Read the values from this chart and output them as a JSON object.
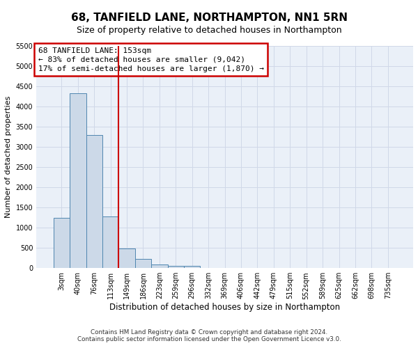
{
  "title": "68, TANFIELD LANE, NORTHAMPTON, NN1 5RN",
  "subtitle": "Size of property relative to detached houses in Northampton",
  "xlabel": "Distribution of detached houses by size in Northampton",
  "ylabel": "Number of detached properties",
  "annotation_line1": "68 TANFIELD LANE: 153sqm",
  "annotation_line2": "← 83% of detached houses are smaller (9,042)",
  "annotation_line3": "17% of semi-detached houses are larger (1,870) →",
  "footer_line1": "Contains HM Land Registry data © Crown copyright and database right 2024.",
  "footer_line2": "Contains public sector information licensed under the Open Government Licence v3.0.",
  "categories": [
    "3sqm",
    "40sqm",
    "76sqm",
    "113sqm",
    "149sqm",
    "186sqm",
    "223sqm",
    "259sqm",
    "296sqm",
    "332sqm",
    "369sqm",
    "406sqm",
    "442sqm",
    "479sqm",
    "515sqm",
    "552sqm",
    "589sqm",
    "625sqm",
    "662sqm",
    "698sqm",
    "735sqm"
  ],
  "values": [
    1250,
    4330,
    3300,
    1270,
    480,
    220,
    95,
    60,
    55,
    0,
    0,
    0,
    0,
    0,
    0,
    0,
    0,
    0,
    0,
    0,
    0
  ],
  "bar_color": "#ccd9e8",
  "bar_edge_color": "#4f86b0",
  "vline_color": "#cc0000",
  "annotation_box_color": "#cc0000",
  "ylim": [
    0,
    5500
  ],
  "yticks": [
    0,
    500,
    1000,
    1500,
    2000,
    2500,
    3000,
    3500,
    4000,
    4500,
    5000,
    5500
  ],
  "grid_color": "#d0d8e8",
  "bg_color": "#eaf0f8",
  "title_fontsize": 11,
  "subtitle_fontsize": 9
}
